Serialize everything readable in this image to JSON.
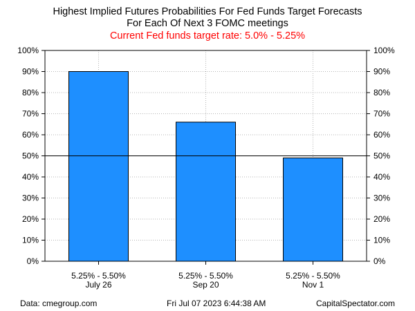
{
  "chart_data": {
    "type": "bar",
    "title": "Highest Implied Futures Probabilities For Fed Funds Target Forecasts",
    "subtitle": "For Each Of Next 3 FOMC meetings",
    "subtitle2": "Current Fed funds target rate: 5.0% - 5.25%",
    "categories": [
      {
        "range": "5.25% - 5.50%",
        "date": "July 26"
      },
      {
        "range": "5.25% - 5.50%",
        "date": "Sep 20"
      },
      {
        "range": "5.25% - 5.50%",
        "date": "Nov 1"
      }
    ],
    "values": [
      90,
      66,
      49
    ],
    "ylim": [
      0,
      100
    ],
    "yticks": [
      "0%",
      "10%",
      "20%",
      "30%",
      "40%",
      "50%",
      "60%",
      "70%",
      "80%",
      "90%",
      "100%"
    ],
    "reference_line": 50,
    "grid": true,
    "bar_color": "#1e8fff"
  },
  "footer": {
    "source": "Data: cmegroup.com",
    "timestamp": "Fri Jul 07 2023 6:44:38 AM",
    "brand": "CapitalSpectator.com"
  }
}
